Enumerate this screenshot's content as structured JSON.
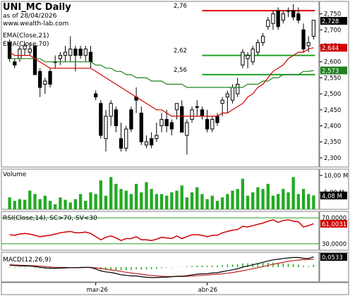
{
  "header": {
    "title": "UNI_MC Daily",
    "asof": "as of 28/04/2026",
    "source": "www.wealth-lab.com",
    "ema_fast_label": "EMA(Close,21)",
    "ema_slow_label": "EMA(Close,70)"
  },
  "panes": {
    "volume_label": "Volume",
    "rsi_label": "RSI(Close,14), SC>70, SV<30",
    "macd_label": "MACD(12,26,9)"
  },
  "colors": {
    "up": "#ffffff",
    "down": "#000000",
    "ema_fast": "#d00000",
    "ema_slow": "#208020",
    "volume": "#22aa22",
    "rsi_line": "#d00000",
    "macd_line": "#000000",
    "signal_line": "#c02020",
    "histogram": "#22aa22",
    "level_red": "#e00000",
    "level_green": "#20a020",
    "price_tag_bg": "#000000"
  },
  "chart_data": [
    {
      "type": "candlestick",
      "title": "UNI_MC Daily",
      "ylim": [
        2.28,
        2.78
      ],
      "yticks": [
        "2,300",
        "2,350",
        "2,400",
        "2,450",
        "2,500",
        "2,550",
        "2,600",
        "2,650",
        "2,700",
        "2,750"
      ],
      "x_ticks": [
        {
          "label": "mar-26",
          "index": 17
        },
        {
          "label": "abr-26",
          "index": 39
        }
      ],
      "ohlc": [
        [
          2.66,
          2.67,
          2.6,
          2.61
        ],
        [
          2.6,
          2.61,
          2.58,
          2.59
        ],
        [
          2.61,
          2.65,
          2.6,
          2.64
        ],
        [
          2.64,
          2.66,
          2.62,
          2.65
        ],
        [
          2.63,
          2.66,
          2.62,
          2.64
        ],
        [
          2.65,
          2.65,
          2.56,
          2.56
        ],
        [
          2.57,
          2.58,
          2.49,
          2.52
        ],
        [
          2.53,
          2.55,
          2.5,
          2.54
        ],
        [
          2.57,
          2.58,
          2.52,
          2.53
        ],
        [
          2.6,
          2.62,
          2.58,
          2.6
        ],
        [
          2.61,
          2.63,
          2.59,
          2.62
        ],
        [
          2.62,
          2.65,
          2.6,
          2.63
        ],
        [
          2.62,
          2.68,
          2.6,
          2.64
        ],
        [
          2.64,
          2.65,
          2.57,
          2.62
        ],
        [
          2.64,
          2.65,
          2.61,
          2.62
        ],
        [
          2.62,
          2.65,
          2.6,
          2.64
        ],
        [
          2.63,
          2.65,
          2.58,
          2.6
        ],
        [
          2.5,
          2.51,
          2.48,
          2.49
        ],
        [
          2.47,
          2.48,
          2.36,
          2.37
        ],
        [
          2.36,
          2.45,
          2.32,
          2.43
        ],
        [
          2.43,
          2.48,
          2.4,
          2.47
        ],
        [
          2.45,
          2.46,
          2.38,
          2.4
        ],
        [
          2.36,
          2.41,
          2.32,
          2.33
        ],
        [
          2.33,
          2.4,
          2.32,
          2.39
        ],
        [
          2.45,
          2.46,
          2.38,
          2.39
        ],
        [
          2.49,
          2.52,
          2.44,
          2.48
        ],
        [
          2.44,
          2.46,
          2.34,
          2.35
        ],
        [
          2.34,
          2.37,
          2.33,
          2.35
        ],
        [
          2.36,
          2.38,
          2.33,
          2.34
        ],
        [
          2.36,
          2.41,
          2.35,
          2.37
        ],
        [
          2.4,
          2.44,
          2.38,
          2.42
        ],
        [
          2.42,
          2.45,
          2.38,
          2.4
        ],
        [
          2.41,
          2.42,
          2.37,
          2.39
        ],
        [
          2.45,
          2.47,
          2.42,
          2.47
        ],
        [
          2.46,
          2.48,
          2.38,
          2.38
        ],
        [
          2.37,
          2.42,
          2.31,
          2.41
        ],
        [
          2.42,
          2.46,
          2.41,
          2.45
        ],
        [
          2.46,
          2.48,
          2.43,
          2.46
        ],
        [
          2.45,
          2.46,
          2.42,
          2.43
        ],
        [
          2.42,
          2.45,
          2.38,
          2.39
        ],
        [
          2.39,
          2.43,
          2.38,
          2.42
        ],
        [
          2.43,
          2.44,
          2.4,
          2.41
        ],
        [
          2.47,
          2.49,
          2.43,
          2.48
        ],
        [
          2.49,
          2.51,
          2.44,
          2.5
        ],
        [
          2.48,
          2.53,
          2.47,
          2.52
        ],
        [
          2.5,
          2.55,
          2.49,
          2.53
        ],
        [
          2.59,
          2.64,
          2.58,
          2.63
        ],
        [
          2.61,
          2.63,
          2.58,
          2.62
        ],
        [
          2.6,
          2.65,
          2.59,
          2.64
        ],
        [
          2.63,
          2.67,
          2.62,
          2.66
        ],
        [
          2.66,
          2.69,
          2.65,
          2.68
        ],
        [
          2.71,
          2.74,
          2.7,
          2.73
        ],
        [
          2.72,
          2.76,
          2.7,
          2.75
        ],
        [
          2.76,
          2.77,
          2.7,
          2.71
        ],
        [
          2.73,
          2.76,
          2.72,
          2.75
        ],
        [
          2.76,
          2.77,
          2.74,
          2.76
        ],
        [
          2.76,
          2.78,
          2.73,
          2.74
        ],
        [
          2.75,
          2.77,
          2.72,
          2.73
        ],
        [
          2.7,
          2.72,
          2.63,
          2.64
        ],
        [
          2.65,
          2.68,
          2.63,
          2.66
        ],
        [
          2.68,
          2.73,
          2.67,
          2.73
        ]
      ],
      "ema_fast": [
        2.63,
        2.62,
        2.62,
        2.62,
        2.62,
        2.61,
        2.6,
        2.59,
        2.58,
        2.58,
        2.58,
        2.58,
        2.58,
        2.58,
        2.58,
        2.58,
        2.58,
        2.57,
        2.56,
        2.55,
        2.54,
        2.53,
        2.52,
        2.51,
        2.5,
        2.49,
        2.48,
        2.47,
        2.46,
        2.45,
        2.45,
        2.44,
        2.43,
        2.43,
        2.43,
        2.43,
        2.43,
        2.43,
        2.43,
        2.43,
        2.43,
        2.43,
        2.44,
        2.44,
        2.45,
        2.46,
        2.47,
        2.49,
        2.5,
        2.52,
        2.53,
        2.55,
        2.57,
        2.58,
        2.59,
        2.61,
        2.62,
        2.63,
        2.63,
        2.64,
        2.644
      ],
      "ema_slow": [
        2.61,
        2.61,
        2.61,
        2.61,
        2.61,
        2.61,
        2.61,
        2.6,
        2.6,
        2.6,
        2.6,
        2.6,
        2.6,
        2.6,
        2.6,
        2.6,
        2.6,
        2.59,
        2.59,
        2.58,
        2.58,
        2.57,
        2.57,
        2.56,
        2.56,
        2.55,
        2.55,
        2.55,
        2.54,
        2.54,
        2.54,
        2.53,
        2.53,
        2.53,
        2.53,
        2.52,
        2.52,
        2.52,
        2.52,
        2.52,
        2.52,
        2.52,
        2.52,
        2.52,
        2.52,
        2.52,
        2.52,
        2.53,
        2.53,
        2.53,
        2.54,
        2.54,
        2.55,
        2.55,
        2.56,
        2.56,
        2.56,
        2.56,
        2.57,
        2.57,
        2.573
      ],
      "levels": [
        {
          "value": 2.76,
          "label": "2,76",
          "color": "#e00000"
        },
        {
          "value": 2.62,
          "label": "2,62",
          "color": "#20a020"
        },
        {
          "value": 2.56,
          "label": "2,56",
          "color": "#20a020"
        }
      ],
      "last_close_label": "2,728",
      "ema_fast_tag": "2,644",
      "ema_slow_tag": "2,573"
    },
    {
      "type": "bar",
      "title": "Volume",
      "yticks": [
        "10,00 M",
        "5,00 M"
      ],
      "last_value_label": "4,08 M",
      "ylim": [
        0,
        11
      ],
      "values": [
        3.5,
        2.5,
        3.0,
        2.8,
        5.5,
        4.5,
        3.0,
        4.0,
        2.5,
        1.5,
        3.5,
        2.8,
        2.0,
        3.0,
        4.5,
        2.5,
        5.0,
        4.5,
        8.5,
        4.0,
        9.5,
        7.5,
        6.0,
        5.5,
        4.5,
        7.5,
        5.0,
        8.0,
        6.0,
        4.5,
        4.5,
        4.0,
        5.0,
        5.5,
        7.0,
        3.5,
        5.0,
        6.5,
        4.5,
        3.0,
        4.0,
        2.5,
        3.5,
        4.5,
        5.5,
        6.0,
        9.0,
        4.0,
        5.0,
        6.5,
        6.0,
        7.5,
        4.0,
        4.5,
        6.0,
        5.0,
        9.5,
        4.5,
        6.0,
        4.5,
        4.08
      ]
    },
    {
      "type": "line",
      "title": "RSI(Close,14), SC>70, SV<30",
      "ylim": [
        20,
        80
      ],
      "yticks": [
        "70,0000",
        "30,0000"
      ],
      "last_value_label": "61,0031",
      "values": [
        44,
        43,
        45,
        46,
        45,
        43,
        41,
        42,
        43,
        45,
        47,
        48,
        49,
        47,
        47,
        48,
        46,
        41,
        36,
        40,
        42,
        39,
        35,
        38,
        38,
        41,
        36,
        36,
        35,
        37,
        40,
        39,
        38,
        42,
        38,
        41,
        44,
        44,
        43,
        41,
        43,
        43,
        47,
        49,
        51,
        52,
        57,
        56,
        58,
        60,
        62,
        65,
        67,
        63,
        66,
        67,
        65,
        64,
        56,
        58,
        61
      ]
    },
    {
      "type": "line",
      "title": "MACD(12,26,9)",
      "last_value_label": "0,0533",
      "ylim": [
        -0.07,
        0.07
      ],
      "macd": [
        0.01,
        0.008,
        0.007,
        0.006,
        0.006,
        0.003,
        -0.001,
        -0.004,
        -0.006,
        -0.006,
        -0.005,
        -0.004,
        -0.003,
        -0.003,
        -0.002,
        -0.001,
        -0.002,
        -0.01,
        -0.02,
        -0.025,
        -0.028,
        -0.033,
        -0.04,
        -0.043,
        -0.046,
        -0.046,
        -0.05,
        -0.053,
        -0.055,
        -0.055,
        -0.053,
        -0.052,
        -0.051,
        -0.048,
        -0.048,
        -0.045,
        -0.041,
        -0.037,
        -0.035,
        -0.034,
        -0.031,
        -0.029,
        -0.024,
        -0.019,
        -0.014,
        -0.009,
        0.0,
        0.006,
        0.012,
        0.018,
        0.025,
        0.032,
        0.038,
        0.041,
        0.045,
        0.048,
        0.05,
        0.05,
        0.046,
        0.045,
        0.0533
      ],
      "signal": [
        0.012,
        0.011,
        0.01,
        0.009,
        0.008,
        0.007,
        0.005,
        0.003,
        0.001,
        -0.001,
        -0.002,
        -0.002,
        -0.003,
        -0.003,
        -0.003,
        -0.002,
        -0.002,
        -0.004,
        -0.007,
        -0.011,
        -0.015,
        -0.018,
        -0.023,
        -0.027,
        -0.031,
        -0.034,
        -0.037,
        -0.041,
        -0.044,
        -0.046,
        -0.048,
        -0.049,
        -0.049,
        -0.049,
        -0.049,
        -0.048,
        -0.047,
        -0.045,
        -0.043,
        -0.041,
        -0.039,
        -0.037,
        -0.035,
        -0.032,
        -0.028,
        -0.024,
        -0.019,
        -0.014,
        -0.008,
        -0.003,
        0.003,
        0.009,
        0.015,
        0.02,
        0.025,
        0.03,
        0.034,
        0.037,
        0.039,
        0.04,
        0.041
      ]
    }
  ]
}
